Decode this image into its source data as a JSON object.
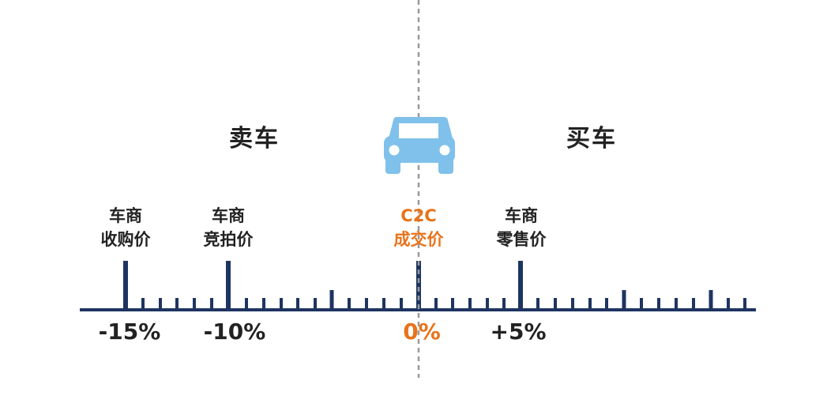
{
  "sides": {
    "left": "卖车",
    "right": "买车"
  },
  "icon": "car-icon",
  "markers": [
    {
      "line1": "车商",
      "line2": "收购价",
      "percent": "-15%",
      "highlight": false
    },
    {
      "line1": "车商",
      "line2": "竞拍价",
      "percent": "-10%",
      "highlight": false
    },
    {
      "line1": "C2C",
      "line2": "成交价",
      "percent": "0%",
      "highlight": true
    },
    {
      "line1": "车商",
      "line2": "零售价",
      "percent": "+5%",
      "highlight": false
    }
  ],
  "colors": {
    "axis": "#1e3461",
    "highlight": "#e8731a",
    "car": "#7fc1ea",
    "divider": "#9a9a9a",
    "text": "#222222"
  }
}
